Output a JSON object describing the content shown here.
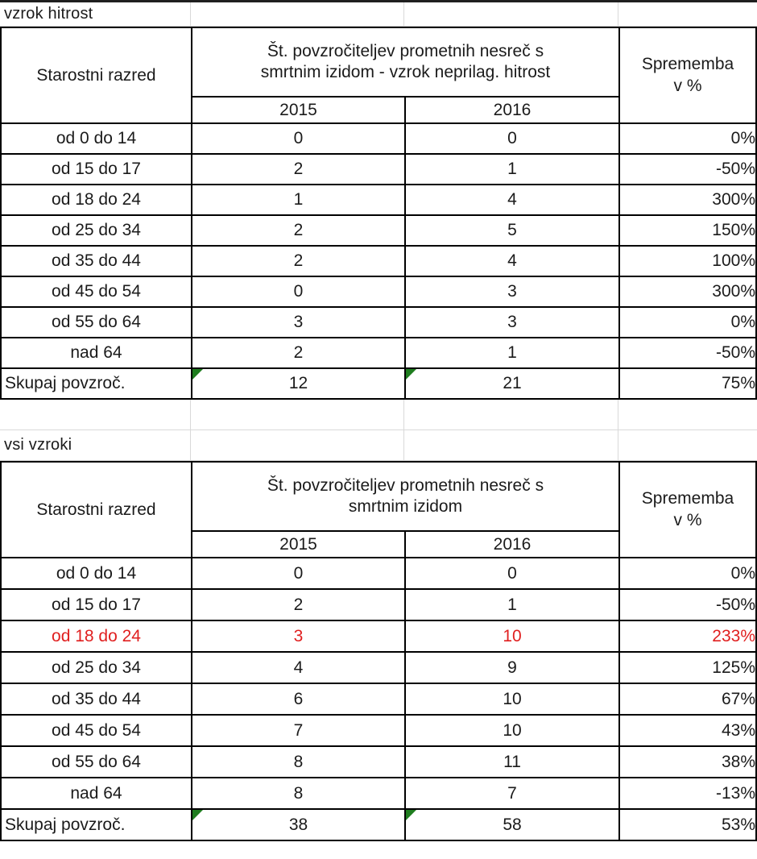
{
  "sheet": {
    "titles": {
      "table1": "vzrok hitrost",
      "table2": "vsi vzroki"
    },
    "colors": {
      "cell_border": "#000000",
      "faint_gridline": "#d9d9d9",
      "highlight_red": "#e01f1f",
      "error_marker_green": "#1f7d1f",
      "text": "#1b1b1b"
    }
  },
  "tables": [
    {
      "title": "vzrok hitrost",
      "header": {
        "col_age": "Starostni razred",
        "main_line1": "Št. povzročiteljev prometnih nesreč s",
        "main_line2": "smrtnim izidom - vzrok neprilag. hitrost",
        "change_line1": "Sprememba",
        "change_line2": "v %",
        "years": [
          "2015",
          "2016"
        ]
      },
      "rows": [
        {
          "age": "od 0 do 14",
          "v2015": "0",
          "v2016": "0",
          "change": "0%",
          "red": false,
          "total": false
        },
        {
          "age": "od 15 do 17",
          "v2015": "2",
          "v2016": "1",
          "change": "-50%",
          "red": false,
          "total": false
        },
        {
          "age": "od 18 do 24",
          "v2015": "1",
          "v2016": "4",
          "change": "300%",
          "red": false,
          "total": false
        },
        {
          "age": "od 25 do 34",
          "v2015": "2",
          "v2016": "5",
          "change": "150%",
          "red": false,
          "total": false
        },
        {
          "age": "od 35 do 44",
          "v2015": "2",
          "v2016": "4",
          "change": "100%",
          "red": false,
          "total": false
        },
        {
          "age": "od 45 do 54",
          "v2015": "0",
          "v2016": "3",
          "change": "300%",
          "red": false,
          "total": false
        },
        {
          "age": "od 55 do 64",
          "v2015": "3",
          "v2016": "3",
          "change": "0%",
          "red": false,
          "total": false
        },
        {
          "age": "nad 64",
          "v2015": "2",
          "v2016": "1",
          "change": "-50%",
          "red": false,
          "total": false
        },
        {
          "age": "Skupaj povzroč.",
          "v2015": "12",
          "v2016": "21",
          "change": "75%",
          "red": false,
          "total": true
        }
      ]
    },
    {
      "title": "vsi vzroki",
      "header": {
        "col_age": "Starostni razred",
        "main_line1": "Št. povzročiteljev prometnih nesreč s",
        "main_line2": "smrtnim izidom",
        "change_line1": "Sprememba",
        "change_line2": "v %",
        "years": [
          "2015",
          "2016"
        ]
      },
      "rows": [
        {
          "age": "od 0 do 14",
          "v2015": "0",
          "v2016": "0",
          "change": "0%",
          "red": false,
          "total": false
        },
        {
          "age": "od 15 do 17",
          "v2015": "2",
          "v2016": "1",
          "change": "-50%",
          "red": false,
          "total": false
        },
        {
          "age": "od 18 do 24",
          "v2015": "3",
          "v2016": "10",
          "change": "233%",
          "red": true,
          "total": false
        },
        {
          "age": "od 25 do 34",
          "v2015": "4",
          "v2016": "9",
          "change": "125%",
          "red": false,
          "total": false
        },
        {
          "age": "od 35 do 44",
          "v2015": "6",
          "v2016": "10",
          "change": "67%",
          "red": false,
          "total": false
        },
        {
          "age": "od 45 do 54",
          "v2015": "7",
          "v2016": "10",
          "change": "43%",
          "red": false,
          "total": false
        },
        {
          "age": "od 55 do 64",
          "v2015": "8",
          "v2016": "11",
          "change": "38%",
          "red": false,
          "total": false
        },
        {
          "age": "nad 64",
          "v2015": "8",
          "v2016": "7",
          "change": "-13%",
          "red": false,
          "total": false
        },
        {
          "age": "Skupaj povzroč.",
          "v2015": "38",
          "v2016": "58",
          "change": "53%",
          "red": false,
          "total": true
        }
      ]
    }
  ]
}
